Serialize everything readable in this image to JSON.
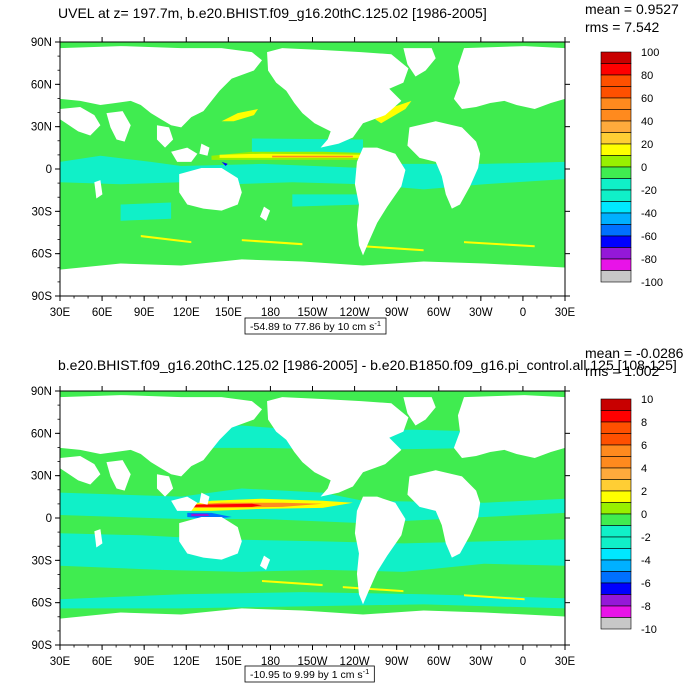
{
  "panels": [
    {
      "title": "UVEL at z= 197.7m, b.e20.BHIST.f09_g16.20thC.125.02 [1986-2005]",
      "mean_label": "mean = 0.9527",
      "rms_label": "rms = 7.542",
      "range_label": "-54.89 to 77.86 by 10 cm s",
      "range_exp": "-1",
      "colorbar_labels": [
        "100",
        "80",
        "60",
        "40",
        "20",
        "0",
        "-20",
        "-40",
        "-60",
        "-80",
        "-100"
      ],
      "lat_labels": [
        "90N",
        "60N",
        "30N",
        "0",
        "30S",
        "60S",
        "90S"
      ],
      "lon_labels": [
        "30E",
        "60E",
        "90E",
        "120E",
        "150E",
        "180",
        "150W",
        "120W",
        "90W",
        "60W",
        "30W",
        "0",
        "30E"
      ]
    },
    {
      "title": "b.e20.BHIST.f09_g16.20thC.125.02 [1986-2005] - b.e20.B1850.f09_g16.pi_control.all.125 [108-125]",
      "mean_label": "mean = -0.0286",
      "rms_label": "rms = 1.002",
      "range_label": "-10.95 to 9.99 by 1 cm s",
      "range_exp": "-1",
      "colorbar_labels": [
        "10",
        "8",
        "6",
        "4",
        "2",
        "0",
        "-2",
        "-4",
        "-6",
        "-8",
        "-10"
      ],
      "lat_labels": [
        "90N",
        "60N",
        "30N",
        "0",
        "30S",
        "60S",
        "90S"
      ],
      "lon_labels": [
        "30E",
        "60E",
        "90E",
        "120E",
        "150E",
        "180",
        "150W",
        "120W",
        "90W",
        "60W",
        "30W",
        "0",
        "30E"
      ]
    }
  ],
  "colors": {
    "ocean_base": "#40ec50",
    "ocean_pale": "#10f0c8",
    "land": "#ffffff",
    "palette": [
      "#6e6e6e",
      "#c8c8c8",
      "#e813e8",
      "#9418d8",
      "#0000ff",
      "#0070ff",
      "#00b0ff",
      "#00e8ff",
      "#10f0c8",
      "#40ec50",
      "#98f000",
      "#ffff00",
      "#ffce34",
      "#ffaa3c",
      "#ff8a1e",
      "#ff5000",
      "#ff0000",
      "#c80000"
    ]
  }
}
